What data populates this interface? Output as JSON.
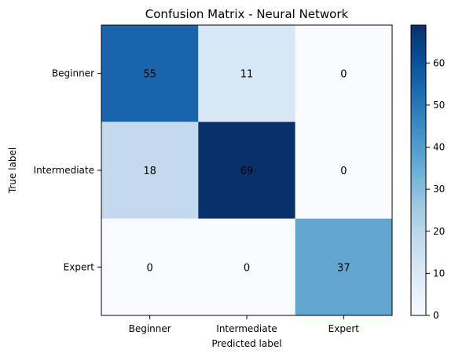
{
  "chart_data": {
    "type": "heatmap",
    "title": "Confusion Matrix - Neural Network",
    "xlabel": "Predicted label",
    "ylabel": "True label",
    "x_categories": [
      "Beginner",
      "Intermediate",
      "Expert"
    ],
    "y_categories": [
      "Beginner",
      "Intermediate",
      "Expert"
    ],
    "values": [
      [
        55,
        11,
        0
      ],
      [
        18,
        69,
        0
      ],
      [
        0,
        0,
        37
      ]
    ],
    "colormap": "Blues",
    "colorbar": {
      "range": [
        0,
        69
      ],
      "ticks": [
        0,
        10,
        20,
        30,
        40,
        50,
        60
      ]
    }
  }
}
